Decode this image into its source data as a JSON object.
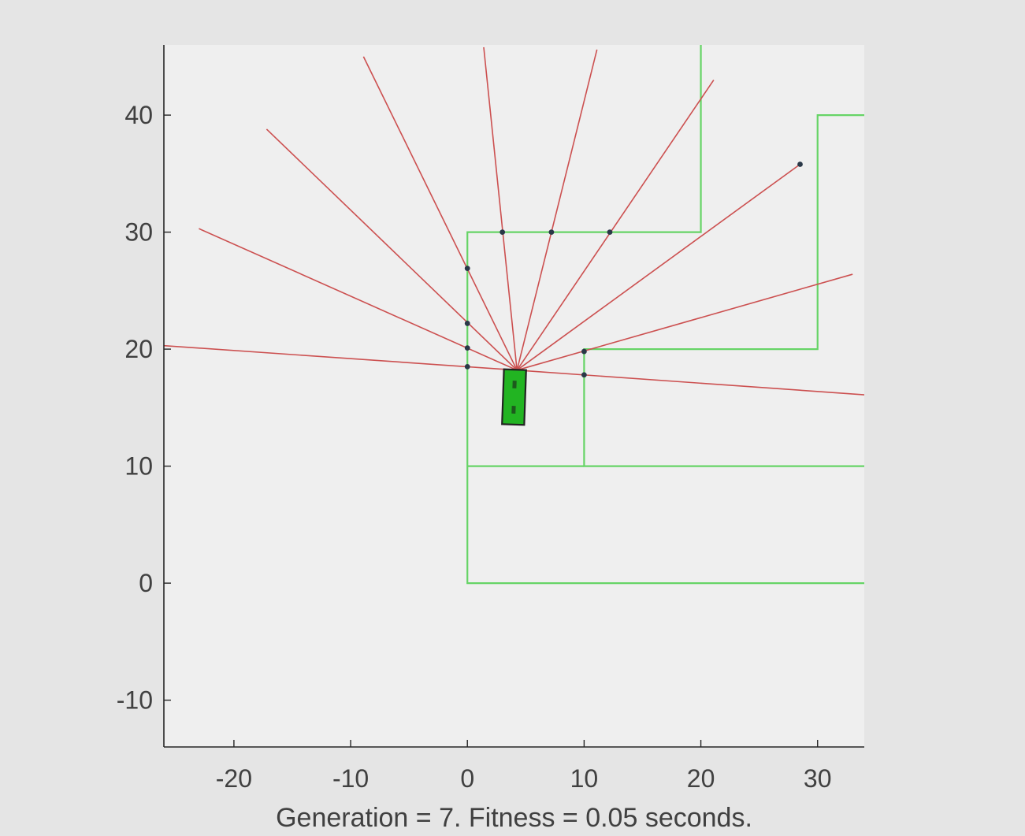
{
  "chart_data": {
    "type": "line",
    "xlim": [
      -26,
      34
    ],
    "ylim": [
      -14,
      46
    ],
    "xticks": [
      -20,
      -10,
      0,
      10,
      20,
      30
    ],
    "yticks": [
      -10,
      0,
      10,
      20,
      30,
      40
    ],
    "xtick_labels": [
      "-20",
      "-10",
      "0",
      "10",
      "20",
      "30"
    ],
    "ytick_labels": [
      "-10",
      "0",
      "10",
      "20",
      "30",
      "40"
    ],
    "caption": "Generation = 7. Fitness = 0.05 seconds.",
    "grid": false,
    "colors": {
      "figure_background": "#e5e5e5",
      "axes_background": "#efefef",
      "track": "#66d466",
      "sensor_ray": "#cc5050",
      "hit_point": "#2a3848",
      "car_fill": "#22b422",
      "car_outline": "#222222",
      "axis": "#262626",
      "tick_label": "#404040"
    },
    "track_walls": [
      {
        "name": "inner-wall",
        "points": [
          [
            34,
            0
          ],
          [
            0,
            0
          ],
          [
            0,
            30
          ],
          [
            20,
            30
          ],
          [
            20,
            46
          ]
        ]
      },
      {
        "name": "outer-wall",
        "points": [
          [
            34,
            10
          ],
          [
            10,
            10
          ],
          [
            10,
            20
          ],
          [
            30,
            20
          ],
          [
            30,
            40
          ],
          [
            34,
            40
          ]
        ]
      },
      {
        "name": "divider",
        "points": [
          [
            0,
            10
          ],
          [
            10,
            10
          ]
        ]
      }
    ],
    "car": {
      "center": [
        4.0,
        15.9
      ],
      "length": 4.7,
      "width": 1.9,
      "heading_deg": 88
    },
    "sensor_origin": [
      4.25,
      18.2
    ],
    "sensor_rays": [
      {
        "end": [
          -26,
          20.3
        ],
        "hit": [
          0,
          18.5
        ]
      },
      {
        "end": [
          -23,
          30.3
        ],
        "hit": [
          0,
          20.1
        ]
      },
      {
        "end": [
          -17.2,
          38.8
        ],
        "hit": [
          0,
          22.2
        ]
      },
      {
        "end": [
          -8.9,
          45.0
        ],
        "hit": [
          0,
          26.9
        ]
      },
      {
        "end": [
          1.4,
          45.8
        ],
        "hit": [
          3,
          30
        ]
      },
      {
        "end": [
          11.1,
          45.6
        ],
        "hit": [
          7.2,
          30
        ]
      },
      {
        "end": [
          21.1,
          43.0
        ],
        "hit": [
          12.2,
          30
        ]
      },
      {
        "end": [
          28.5,
          35.8
        ],
        "hit": [
          28.5,
          35.8
        ]
      },
      {
        "end": [
          33.0,
          26.4
        ],
        "hit": [
          10,
          19.8
        ]
      },
      {
        "end": [
          34,
          16.1
        ],
        "hit": [
          10,
          17.8
        ]
      }
    ]
  }
}
